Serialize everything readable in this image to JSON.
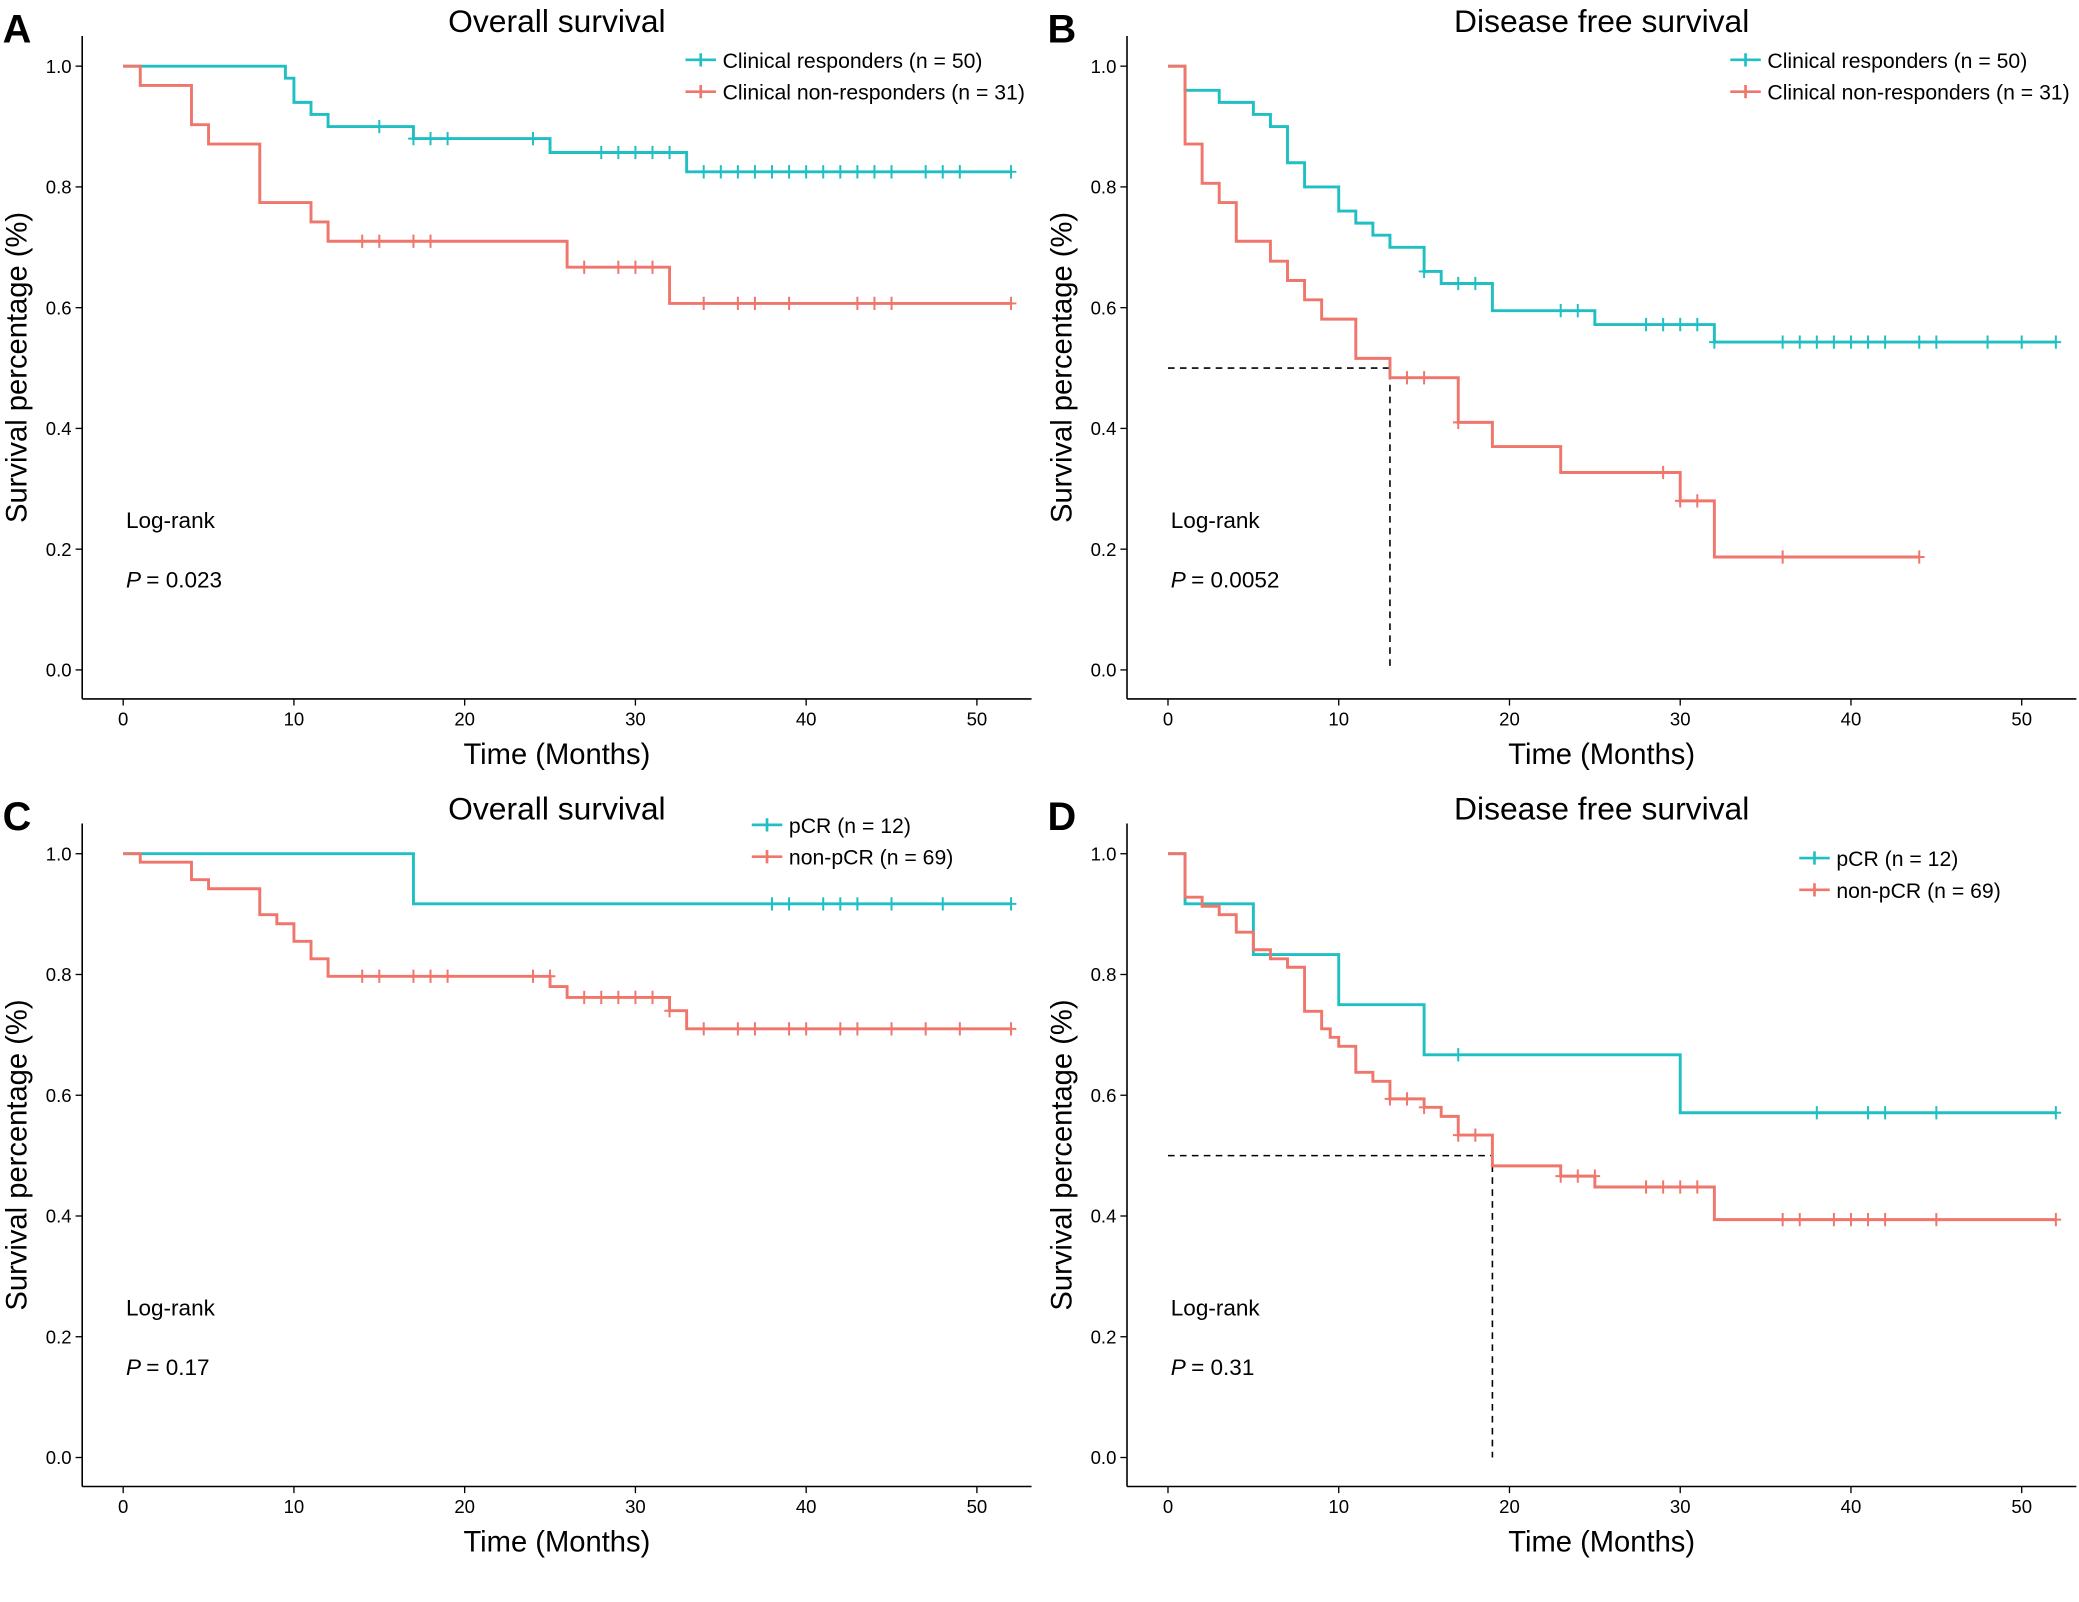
{
  "chart_data": [
    {
      "type": "step",
      "panel_label": "A",
      "title": "Overall survival",
      "x_label": "Time (Months)",
      "y_label": "Survival percentage (%)",
      "annotations": {
        "test": "Log-rank",
        "p_symbol": "P",
        "p_text": "= 0.023"
      },
      "xlim": [
        -2.4,
        53.2
      ],
      "ylim": [
        -0.048,
        1.05
      ],
      "xticks": [
        0,
        10,
        20,
        30,
        40,
        50
      ],
      "yticks": [
        {
          "value": 0,
          "label": "0.0"
        },
        0.2,
        0.4,
        0.6,
        0.8,
        {
          "value": 1,
          "label": "1.0"
        }
      ],
      "series": [
        {
          "name": "Clinical responders (n = 50)",
          "color": "#1fbfc3",
          "x": [
            0,
            9.5,
            10,
            11,
            12,
            17,
            25,
            33,
            52
          ],
          "values": [
            1,
            0.98,
            0.94,
            0.92,
            0.9,
            0.88,
            0.857,
            0.825,
            0.825
          ],
          "censor_x": [
            15,
            17,
            18,
            19,
            24,
            28,
            29,
            30,
            31,
            32,
            34,
            35,
            36,
            37,
            38,
            39,
            40,
            41,
            42,
            43,
            44,
            45,
            47,
            48,
            49,
            52
          ],
          "censor_values": [
            0.9,
            0.88,
            0.88,
            0.88,
            0.88,
            0.857,
            0.857,
            0.857,
            0.857,
            0.857,
            0.825,
            0.825,
            0.825,
            0.825,
            0.825,
            0.825,
            0.825,
            0.825,
            0.825,
            0.825,
            0.825,
            0.825,
            0.825,
            0.825,
            0.825,
            0.825
          ]
        },
        {
          "name": "Clinical non-responders (n = 31)",
          "color": "#f0756b",
          "x": [
            0,
            1,
            4,
            5,
            8,
            11,
            12,
            26,
            32,
            52
          ],
          "values": [
            1,
            0.968,
            0.903,
            0.871,
            0.774,
            0.742,
            0.71,
            0.667,
            0.607,
            0.607
          ],
          "censor_x": [
            14,
            15,
            17,
            18,
            27,
            29,
            30,
            31,
            34,
            36,
            37,
            39,
            43,
            44,
            45,
            52
          ],
          "censor_values": [
            0.71,
            0.71,
            0.71,
            0.71,
            0.667,
            0.667,
            0.667,
            0.667,
            0.607,
            0.607,
            0.607,
            0.607,
            0.607,
            0.607,
            0.607,
            0.607
          ]
        }
      ]
    },
    {
      "type": "step",
      "panel_label": "B",
      "title": "Disease free survival",
      "x_label": "Time (Months)",
      "y_label": "Survival percentage (%)",
      "annotations": {
        "test": "Log-rank",
        "p_symbol": "P",
        "p_text": "= 0.0052"
      },
      "xlim": [
        -2.4,
        53.2
      ],
      "ylim": [
        -0.048,
        1.05
      ],
      "xticks": [
        0,
        10,
        20,
        30,
        40,
        50
      ],
      "yticks": [
        {
          "value": 0,
          "label": "0.0"
        },
        0.2,
        0.4,
        0.6,
        0.8,
        {
          "value": 1,
          "label": "1.0"
        }
      ],
      "median_line": {
        "x": 13,
        "y": 0.5
      },
      "series": [
        {
          "name": "Clinical responders (n = 50)",
          "color": "#1fbfc3",
          "x": [
            0,
            1,
            3,
            5,
            6,
            7,
            8,
            10,
            11,
            12,
            13,
            15,
            16,
            19,
            25,
            32,
            52
          ],
          "values": [
            1,
            0.96,
            0.94,
            0.92,
            0.9,
            0.84,
            0.8,
            0.76,
            0.74,
            0.72,
            0.7,
            0.66,
            0.64,
            0.595,
            0.572,
            0.543,
            0.543
          ],
          "censor_x": [
            15,
            17,
            18,
            23,
            24,
            28,
            29,
            30,
            31,
            32,
            36,
            37,
            38,
            39,
            40,
            41,
            42,
            44,
            45,
            48,
            50,
            52
          ],
          "censor_values": [
            0.66,
            0.64,
            0.64,
            0.595,
            0.595,
            0.572,
            0.572,
            0.572,
            0.572,
            0.543,
            0.543,
            0.543,
            0.543,
            0.543,
            0.543,
            0.543,
            0.543,
            0.543,
            0.543,
            0.543,
            0.543,
            0.543
          ]
        },
        {
          "name": "Clinical non-responders (n = 31)",
          "color": "#f0756b",
          "x": [
            0,
            1,
            2,
            3,
            4,
            6,
            7,
            8,
            9,
            11,
            13,
            17,
            19,
            23,
            30,
            32,
            44
          ],
          "values": [
            1,
            0.871,
            0.806,
            0.774,
            0.71,
            0.677,
            0.645,
            0.613,
            0.581,
            0.516,
            0.484,
            0.41,
            0.37,
            0.327,
            0.28,
            0.187,
            0.187
          ],
          "censor_x": [
            14,
            15,
            17,
            29,
            30,
            31,
            36,
            44
          ],
          "censor_values": [
            0.484,
            0.484,
            0.41,
            0.327,
            0.28,
            0.28,
            0.187,
            0.187
          ]
        }
      ]
    },
    {
      "type": "step",
      "panel_label": "C",
      "title": "Overall survival",
      "x_label": "Time (Months)",
      "y_label": "Survival percentage (%)",
      "annotations": {
        "test": "Log-rank",
        "p_symbol": "P",
        "p_text": "= 0.17"
      },
      "xlim": [
        -2.4,
        53.2
      ],
      "ylim": [
        -0.048,
        1.05
      ],
      "xticks": [
        0,
        10,
        20,
        30,
        40,
        50
      ],
      "yticks": [
        {
          "value": 0,
          "label": "0.0"
        },
        0.2,
        0.4,
        0.6,
        0.8,
        {
          "value": 1,
          "label": "1.0"
        }
      ],
      "series": [
        {
          "name": "pCR (n = 12)",
          "color": "#1fbfc3",
          "x": [
            0,
            17,
            52
          ],
          "values": [
            1,
            0.917,
            0.917
          ],
          "censor_x": [
            38,
            39,
            41,
            42,
            43,
            45,
            48,
            52
          ],
          "censor_values": [
            0.917,
            0.917,
            0.917,
            0.917,
            0.917,
            0.917,
            0.917,
            0.917
          ]
        },
        {
          "name": "non-pCR (n = 69)",
          "color": "#f0756b",
          "x": [
            0,
            1,
            4,
            5,
            8,
            9,
            10,
            11,
            12,
            25,
            26,
            32,
            33,
            52
          ],
          "values": [
            1,
            0.986,
            0.957,
            0.942,
            0.899,
            0.884,
            0.855,
            0.826,
            0.797,
            0.78,
            0.762,
            0.74,
            0.71,
            0.71
          ],
          "censor_x": [
            14,
            15,
            17,
            18,
            19,
            24,
            25,
            27,
            28,
            29,
            30,
            31,
            32,
            34,
            36,
            37,
            39,
            40,
            42,
            43,
            45,
            47,
            49,
            52
          ],
          "censor_values": [
            0.797,
            0.797,
            0.797,
            0.797,
            0.797,
            0.797,
            0.797,
            0.762,
            0.762,
            0.762,
            0.762,
            0.762,
            0.74,
            0.71,
            0.71,
            0.71,
            0.71,
            0.71,
            0.71,
            0.71,
            0.71,
            0.71,
            0.71,
            0.71
          ]
        }
      ]
    },
    {
      "type": "step",
      "panel_label": "D",
      "title": "Disease free survival",
      "x_label": "Time (Months)",
      "y_label": "Survival percentage (%)",
      "annotations": {
        "test": "Log-rank",
        "p_symbol": "P",
        "p_text": "= 0.31"
      },
      "xlim": [
        -2.4,
        53.2
      ],
      "ylim": [
        -0.048,
        1.05
      ],
      "xticks": [
        0,
        10,
        20,
        30,
        40,
        50
      ],
      "yticks": [
        {
          "value": 0,
          "label": "0.0"
        },
        0.2,
        0.4,
        0.6,
        0.8,
        {
          "value": 1,
          "label": "1.0"
        }
      ],
      "median_line": {
        "x": 19,
        "y": 0.5
      },
      "series": [
        {
          "name": "pCR (n = 12)",
          "color": "#1fbfc3",
          "x": [
            0,
            1,
            5,
            10,
            15,
            30,
            52
          ],
          "values": [
            1,
            0.917,
            0.833,
            0.75,
            0.667,
            0.571,
            0.571
          ],
          "censor_x": [
            17,
            38,
            41,
            42,
            45,
            52
          ],
          "censor_values": [
            0.667,
            0.571,
            0.571,
            0.571,
            0.571,
            0.571
          ]
        },
        {
          "name": "non-pCR (n = 69)",
          "color": "#f0756b",
          "x": [
            0,
            1,
            2,
            3,
            4,
            5,
            6,
            7,
            8,
            9,
            9.5,
            10,
            11,
            12,
            13,
            15,
            16,
            17,
            19,
            23,
            25,
            32,
            52
          ],
          "values": [
            1,
            0.928,
            0.913,
            0.899,
            0.87,
            0.841,
            0.826,
            0.812,
            0.739,
            0.71,
            0.696,
            0.681,
            0.638,
            0.623,
            0.594,
            0.58,
            0.565,
            0.534,
            0.483,
            0.466,
            0.448,
            0.394,
            0.394
          ],
          "censor_x": [
            13,
            14,
            15,
            17,
            18,
            23,
            24,
            25,
            28,
            29,
            30,
            31,
            36,
            37,
            39,
            40,
            41,
            42,
            45,
            52
          ],
          "censor_values": [
            0.594,
            0.594,
            0.58,
            0.534,
            0.534,
            0.466,
            0.466,
            0.466,
            0.448,
            0.448,
            0.448,
            0.448,
            0.394,
            0.394,
            0.394,
            0.394,
            0.394,
            0.394,
            0.394,
            0.394
          ]
        }
      ]
    }
  ]
}
